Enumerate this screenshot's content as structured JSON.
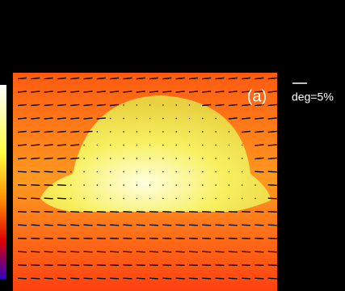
{
  "panel_label": "(a)",
  "legend": {
    "label": "deg=5%"
  }
}
